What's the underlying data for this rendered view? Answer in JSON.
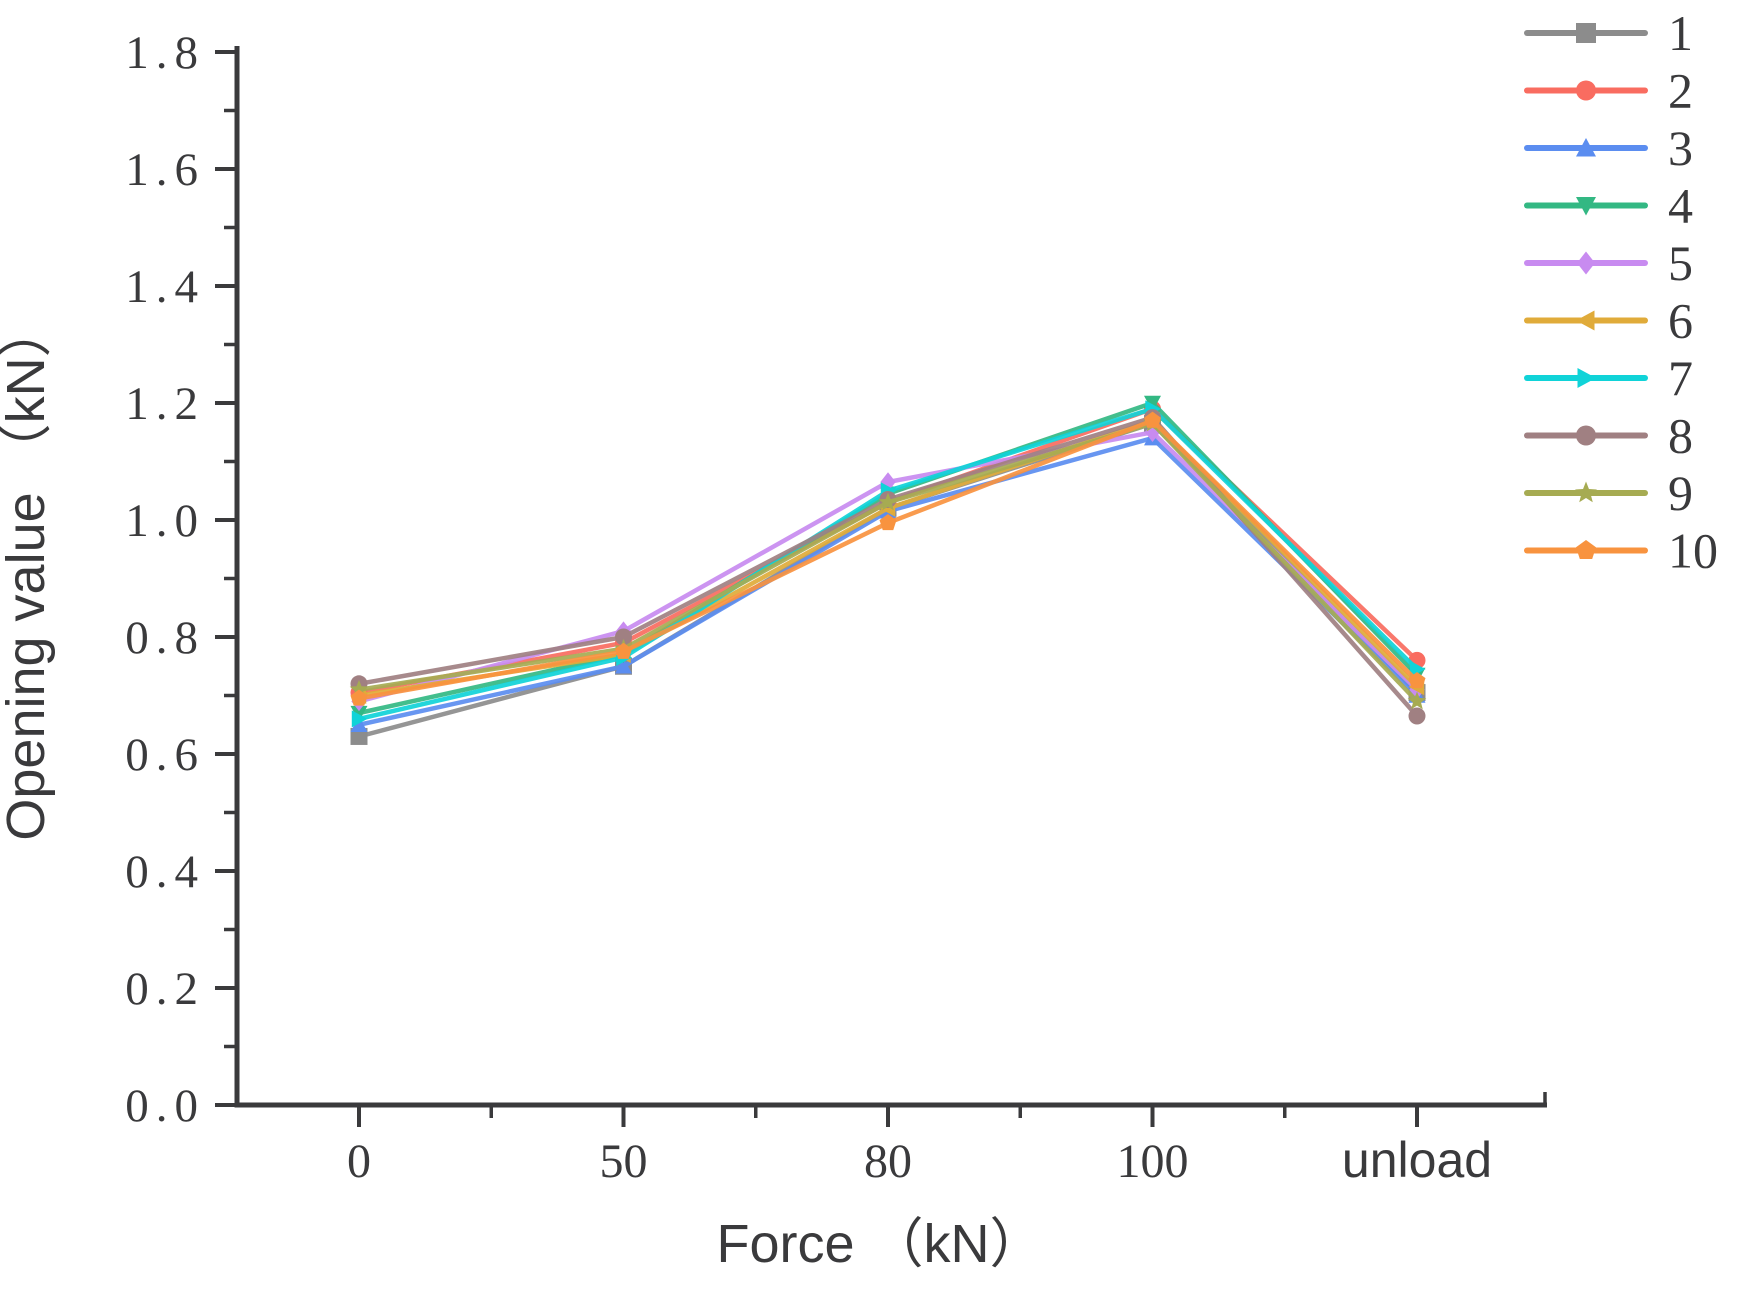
{
  "figure": {
    "background": "#ffffff",
    "axis_color": "#3a3a3c",
    "text_color": "#3a3a3c"
  },
  "chart_data": {
    "type": "line",
    "title": "",
    "xlabel": "Force （kN）",
    "ylabel": "Opening value （kN）",
    "categories": [
      "0",
      "50",
      "80",
      "100",
      "unload"
    ],
    "y_ticks": [
      "0.0",
      "0.2",
      "0.4",
      "0.6",
      "0.8",
      "1.0",
      "1.2",
      "1.4",
      "1.6",
      "1.8"
    ],
    "ylim": [
      0,
      1.8
    ],
    "y_minor_step": 0.1,
    "grid": false,
    "legend_position": "top-right-outside",
    "series": [
      {
        "name": "1",
        "color": "#8c8c8c",
        "marker": "square",
        "values": [
          0.63,
          0.75,
          1.02,
          1.165,
          0.705
        ]
      },
      {
        "name": "2",
        "color": "#f96c60",
        "marker": "circle",
        "values": [
          0.705,
          0.79,
          1.03,
          1.19,
          0.76
        ]
      },
      {
        "name": "3",
        "color": "#5b8df0",
        "marker": "triangle-up",
        "values": [
          0.65,
          0.75,
          1.015,
          1.14,
          0.7
        ]
      },
      {
        "name": "4",
        "color": "#33b883",
        "marker": "triangle-down",
        "values": [
          0.67,
          0.77,
          1.045,
          1.2,
          0.735
        ]
      },
      {
        "name": "5",
        "color": "#c88bf0",
        "marker": "diamond",
        "values": [
          0.69,
          0.81,
          1.065,
          1.15,
          0.71
        ]
      },
      {
        "name": "6",
        "color": "#e0ab3a",
        "marker": "triangle-left",
        "values": [
          0.7,
          0.77,
          1.02,
          1.17,
          0.715
        ]
      },
      {
        "name": "7",
        "color": "#10d3d8",
        "marker": "triangle-right",
        "values": [
          0.66,
          0.765,
          1.05,
          1.19,
          0.745
        ]
      },
      {
        "name": "8",
        "color": "#a08082",
        "marker": "circle",
        "values": [
          0.72,
          0.8,
          1.035,
          1.175,
          0.665
        ]
      },
      {
        "name": "9",
        "color": "#a6ab52",
        "marker": "star",
        "values": [
          0.71,
          0.78,
          1.03,
          1.165,
          0.69
        ]
      },
      {
        "name": "10",
        "color": "#f8933f",
        "marker": "pentagon",
        "values": [
          0.695,
          0.775,
          0.995,
          1.17,
          0.725
        ]
      }
    ]
  }
}
